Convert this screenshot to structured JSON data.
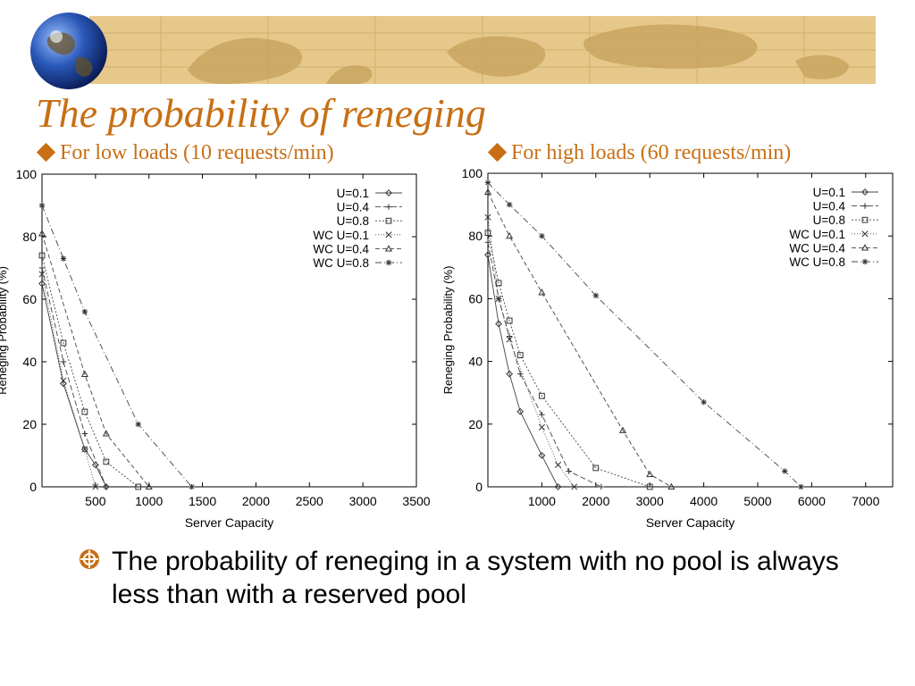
{
  "slide": {
    "title": "The probability of reneging",
    "left_heading": "For low loads (10 requests/min)",
    "right_heading": "For high loads (60 requests/min)",
    "bullet": "The probability of reneging in a system with no pool is always less than with a reserved pool",
    "accent_color": "#c86f14",
    "banner_color": "#e6c98a"
  },
  "chart_data": [
    {
      "type": "line",
      "xlabel": "Server Capacity",
      "ylabel": "Reneging Probability (%)",
      "xlim": [
        0,
        3500
      ],
      "ylim": [
        0,
        100
      ],
      "xticks": [
        500,
        1000,
        1500,
        2000,
        2500,
        3000,
        3500
      ],
      "yticks": [
        0,
        20,
        40,
        60,
        80,
        100
      ],
      "legend_position": "top-right",
      "series": [
        {
          "name": "U=0.1",
          "marker": "diamond",
          "dash": "",
          "x": [
            0,
            200,
            400,
            500,
            600
          ],
          "y": [
            65,
            33,
            12,
            7,
            0
          ]
        },
        {
          "name": "U=0.4",
          "marker": "plus",
          "dash": "6,3",
          "x": [
            0,
            200,
            400,
            600
          ],
          "y": [
            70,
            40,
            17,
            0
          ]
        },
        {
          "name": "U=0.8",
          "marker": "square",
          "dash": "2,2",
          "x": [
            0,
            200,
            400,
            600,
            900
          ],
          "y": [
            74,
            46,
            24,
            8,
            0
          ]
        },
        {
          "name": "WC U=0.1",
          "marker": "cross",
          "dash": "1,2",
          "x": [
            0,
            200,
            400,
            500
          ],
          "y": [
            68,
            34,
            12,
            0
          ]
        },
        {
          "name": "WC U=0.4",
          "marker": "triangle",
          "dash": "5,3",
          "x": [
            0,
            400,
            600,
            1000
          ],
          "y": [
            81,
            36,
            17,
            0
          ]
        },
        {
          "name": "WC U=0.8",
          "marker": "star",
          "dash": "7,3,1,3",
          "x": [
            0,
            200,
            400,
            900,
            1400
          ],
          "y": [
            90,
            73,
            56,
            20,
            0
          ]
        }
      ]
    },
    {
      "type": "line",
      "xlabel": "Server Capacity",
      "ylabel": "Reneging Probability (%)",
      "xlim": [
        0,
        7500
      ],
      "ylim": [
        0,
        100
      ],
      "xticks": [
        1000,
        2000,
        3000,
        4000,
        5000,
        6000,
        7000
      ],
      "yticks": [
        0,
        20,
        40,
        60,
        80,
        100
      ],
      "legend_position": "top-right",
      "series": [
        {
          "name": "U=0.1",
          "marker": "diamond",
          "dash": "",
          "x": [
            0,
            200,
            400,
            600,
            1000,
            1300
          ],
          "y": [
            74,
            52,
            36,
            24,
            10,
            0
          ]
        },
        {
          "name": "U=0.4",
          "marker": "plus",
          "dash": "6,3",
          "x": [
            0,
            200,
            400,
            600,
            1000,
            1500,
            2100
          ],
          "y": [
            78,
            60,
            48,
            36,
            23,
            5,
            0
          ]
        },
        {
          "name": "U=0.8",
          "marker": "square",
          "dash": "2,2",
          "x": [
            0,
            200,
            400,
            600,
            1000,
            2000,
            3000
          ],
          "y": [
            81,
            65,
            53,
            42,
            29,
            6,
            0
          ]
        },
        {
          "name": "WC U=0.1",
          "marker": "cross",
          "dash": "1,2",
          "x": [
            0,
            200,
            400,
            1000,
            1300,
            1600
          ],
          "y": [
            86,
            60,
            47,
            19,
            7,
            0
          ]
        },
        {
          "name": "WC U=0.4",
          "marker": "triangle",
          "dash": "5,3",
          "x": [
            0,
            400,
            1000,
            2500,
            3000,
            3400
          ],
          "y": [
            94,
            80,
            62,
            18,
            4,
            0
          ]
        },
        {
          "name": "WC U=0.8",
          "marker": "star",
          "dash": "7,3,1,3",
          "x": [
            0,
            400,
            1000,
            2000,
            4000,
            5500,
            5800
          ],
          "y": [
            97,
            90,
            80,
            61,
            27,
            5,
            0
          ]
        }
      ]
    }
  ]
}
